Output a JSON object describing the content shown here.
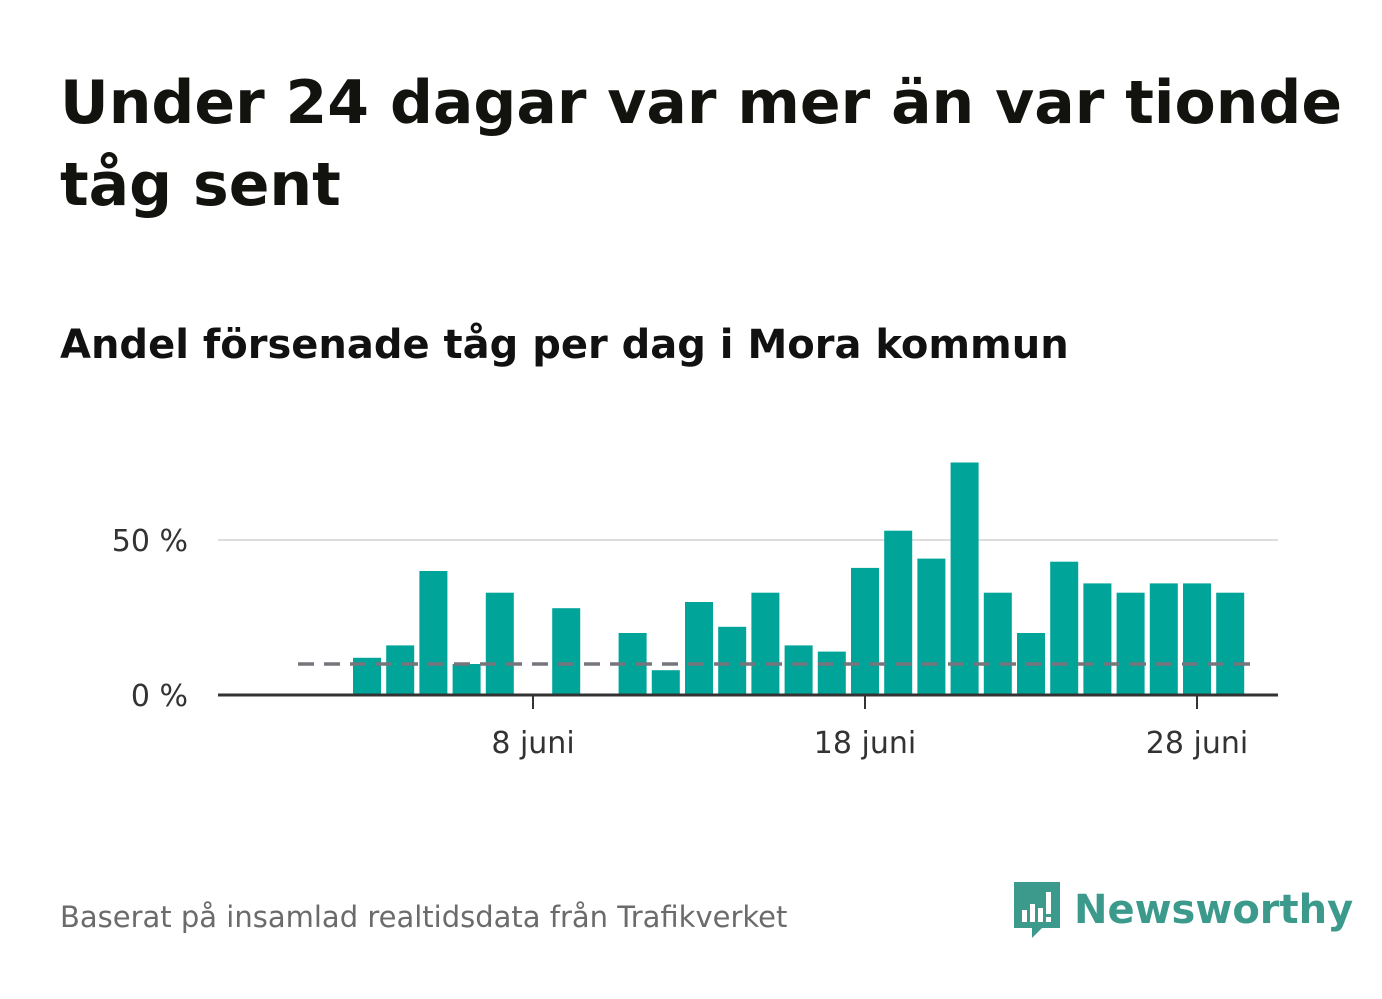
{
  "header": {
    "title": "Under 24 dagar var mer än var tionde tåg sent",
    "subtitle": "Andel försenade tåg per dag i Mora kommun"
  },
  "footer": {
    "source": "Baserat på insamlad realtidsdata från Trafikverket",
    "brand": "Newsworthy"
  },
  "colors": {
    "bar": "#00a499",
    "reference_line": "#75757d",
    "grid": "#dddddd",
    "axis": "#333333",
    "brand": "#3b9a8c"
  },
  "icons": {
    "brand_logo": "bar-chart-speech-bubble-icon"
  },
  "chart_data": {
    "type": "bar",
    "x_unit": "day of June",
    "x": [
      1,
      2,
      3,
      4,
      5,
      6,
      7,
      8,
      9,
      10,
      11,
      12,
      13,
      14,
      15,
      16,
      17,
      18,
      19,
      20,
      21,
      22,
      23,
      24,
      25,
      26,
      27,
      28,
      29,
      30
    ],
    "values": [
      null,
      null,
      12,
      16,
      40,
      10,
      33,
      null,
      28,
      null,
      20,
      8,
      30,
      22,
      33,
      16,
      14,
      41,
      53,
      44,
      75,
      33,
      20,
      43,
      36,
      33,
      36,
      36,
      33,
      null
    ],
    "ylim": [
      0,
      80
    ],
    "yticks": [
      0,
      50
    ],
    "ytick_labels": [
      "0 %",
      "50 %"
    ],
    "xticks": [
      8,
      18,
      28
    ],
    "xtick_labels": [
      "8 juni",
      "18 juni",
      "28 juni"
    ],
    "reference_line": {
      "value": 10,
      "style": "dashed",
      "x_range": [
        1,
        30
      ]
    },
    "grid": "horizontal",
    "xlabel": "",
    "ylabel": ""
  }
}
